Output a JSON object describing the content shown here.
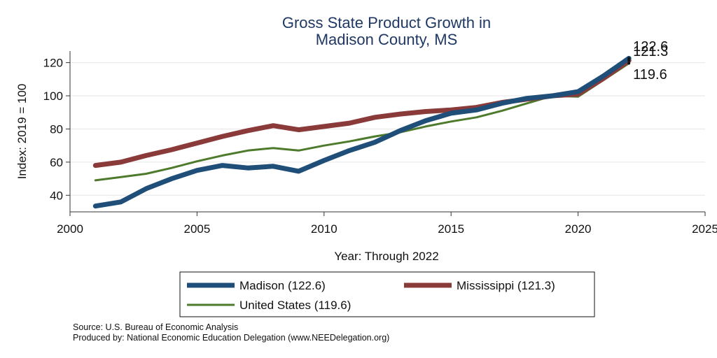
{
  "chart_data": {
    "type": "line",
    "title": [
      "Gross State Product Growth in",
      "Madison County, MS"
    ],
    "xlabel": "Year: Through 2022",
    "ylabel": "Index: 2019 = 100",
    "xlim": [
      2000,
      2025
    ],
    "ylim": [
      30,
      127
    ],
    "xticks": [
      2000,
      2005,
      2010,
      2015,
      2020,
      2025
    ],
    "yticks": [
      40,
      60,
      80,
      100,
      120
    ],
    "grid": "horizontal",
    "legend_position": "bottom",
    "x": [
      2001,
      2002,
      2003,
      2004,
      2005,
      2006,
      2007,
      2008,
      2009,
      2010,
      2011,
      2012,
      2013,
      2014,
      2015,
      2016,
      2017,
      2018,
      2019,
      2020,
      2021,
      2022
    ],
    "series": [
      {
        "name": "Madison",
        "legend_label": "Madison  (122.6)",
        "end_label": "122.6",
        "color": "#1f4e79",
        "values": [
          33.5,
          36,
          44,
          50,
          55,
          58,
          56.5,
          57.5,
          54.5,
          61,
          67,
          72,
          79,
          85,
          89.5,
          91.5,
          95.5,
          98.5,
          100,
          102.5,
          112,
          122.6
        ]
      },
      {
        "name": "Mississippi",
        "legend_label": "Mississippi (121.3)",
        "end_label": "121.3",
        "color": "#8b3a3a",
        "values": [
          58,
          60,
          64,
          67.5,
          71.5,
          75.5,
          79,
          82,
          79.5,
          81.5,
          83.5,
          87,
          89,
          90.5,
          91.5,
          93,
          96,
          98,
          100,
          101,
          110.5,
          121.3
        ]
      },
      {
        "name": "United States",
        "legend_label": "United States (119.6)",
        "end_label": "119.6",
        "color": "#4e7a2c",
        "values": [
          49,
          51,
          53,
          56.5,
          60.5,
          64,
          67,
          68.5,
          67,
          70,
          72.5,
          75.5,
          78,
          81.5,
          84.5,
          87,
          91,
          95.5,
          100,
          99.5,
          109.5,
          119.6
        ]
      }
    ]
  },
  "notes": {
    "source": "Source: U.S. Bureau of Economic Analysis",
    "produced": "Produced by: National Economic Education Delegation (www.NEEDelegation.org)"
  }
}
